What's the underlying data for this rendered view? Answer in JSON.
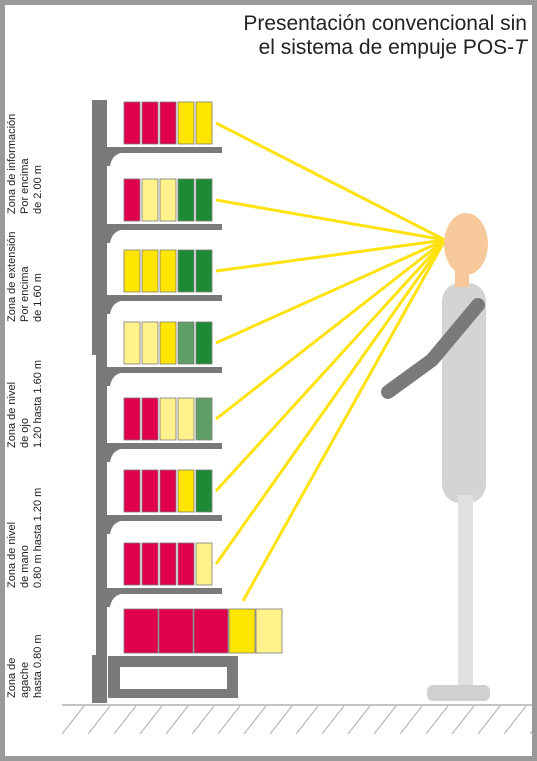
{
  "title": {
    "line1": "Presentación convencional sin",
    "line2_prefix": "el sistema de empuje POS-",
    "line2_symbol": "T"
  },
  "colors": {
    "red": "#e0004d",
    "yellow": "#ffe600",
    "light_yellow": "#fff28a",
    "green": "#1f8a35",
    "muted_green": "#5f9e66",
    "sight_lines": "#ffe20f",
    "head": "#f7c99a",
    "body": "#d4d4d4",
    "arm": "#7a7a7a",
    "shelf": "#7a7a7a",
    "frame": "#9a9a9a"
  },
  "zones": [
    {
      "lines": [
        "Zona de información",
        "Por encima",
        "de 2.00 m"
      ]
    },
    {
      "lines": [
        "Zona de extensión",
        "Por encima",
        "de 1.60 m"
      ]
    },
    {
      "lines": [
        "Zona de nivel",
        "de ojo",
        "1.20 hasta 1.60 m"
      ]
    },
    {
      "lines": [
        "Zona de nivel",
        "de mano",
        "0.80 m hasta 1.20 m"
      ]
    },
    {
      "lines": [
        "Zona de",
        "agache",
        "hasta 0.80 m"
      ]
    }
  ],
  "shelves": [
    [
      "red",
      "red",
      "red",
      "yellow",
      "yellow"
    ],
    [
      "red",
      "light_yellow",
      "light_yellow",
      "green",
      "green"
    ],
    [
      "yellow",
      "yellow",
      "yellow",
      "green",
      "green"
    ],
    [
      "light_yellow",
      "light_yellow",
      "yellow",
      "muted_green",
      "green"
    ],
    [
      "red",
      "red",
      "light_yellow",
      "light_yellow",
      "muted_green"
    ],
    [
      "red",
      "red",
      "red",
      "yellow",
      "green"
    ],
    [
      "red",
      "red",
      "red",
      "red",
      "light_yellow"
    ],
    [
      "red",
      "red",
      "red",
      "yellow",
      "light_yellow"
    ]
  ]
}
